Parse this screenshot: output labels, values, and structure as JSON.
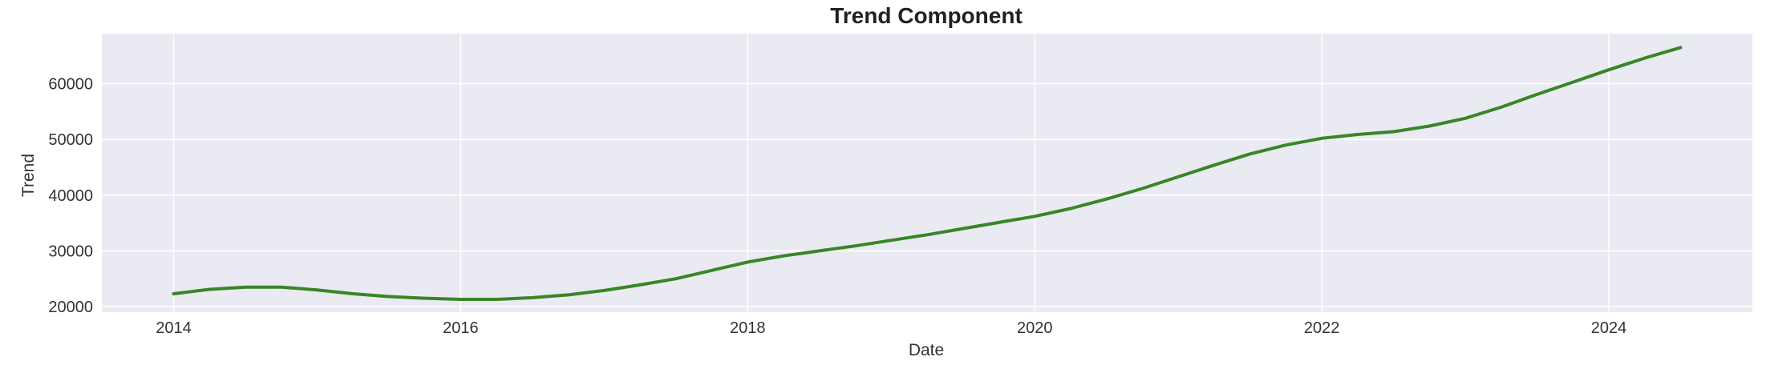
{
  "chart_data": {
    "type": "line",
    "title": "Trend Component",
    "xlabel": "Date",
    "ylabel": "Trend",
    "xlim": [
      2013.5,
      2025.0
    ],
    "ylim": [
      19000,
      69000
    ],
    "x_ticks": [
      2014,
      2016,
      2018,
      2020,
      2022,
      2024
    ],
    "x_tick_labels": [
      "2014",
      "2016",
      "2018",
      "2020",
      "2022",
      "2024"
    ],
    "y_ticks": [
      20000,
      30000,
      40000,
      50000,
      60000
    ],
    "y_tick_labels": [
      "20000",
      "30000",
      "40000",
      "50000",
      "60000"
    ],
    "grid": true,
    "legend": "none",
    "series": [
      {
        "color": "#3a8528",
        "x": [
          2014.0,
          2014.25,
          2014.5,
          2014.75,
          2015.0,
          2015.25,
          2015.5,
          2015.75,
          2016.0,
          2016.25,
          2016.5,
          2016.75,
          2017.0,
          2017.25,
          2017.5,
          2017.75,
          2018.0,
          2018.25,
          2018.5,
          2018.75,
          2019.0,
          2019.25,
          2019.5,
          2019.75,
          2020.0,
          2020.25,
          2020.5,
          2020.75,
          2021.0,
          2021.25,
          2021.5,
          2021.75,
          2022.0,
          2022.25,
          2022.5,
          2022.75,
          2023.0,
          2023.25,
          2023.5,
          2023.75,
          2024.0,
          2024.25,
          2024.5
        ],
        "y": [
          22300,
          23100,
          23500,
          23500,
          23000,
          22300,
          21800,
          21500,
          21300,
          21300,
          21600,
          22100,
          22900,
          23900,
          25000,
          26500,
          28000,
          29100,
          30000,
          30900,
          31900,
          32900,
          34000,
          35100,
          36200,
          37600,
          39300,
          41200,
          43300,
          45400,
          47400,
          49000,
          50200,
          50900,
          51400,
          52400,
          53800,
          55800,
          58100,
          60300,
          62500,
          64600,
          66500
        ]
      }
    ]
  }
}
